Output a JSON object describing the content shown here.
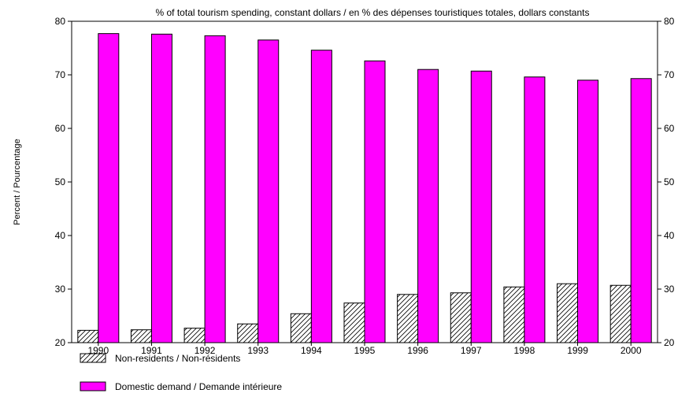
{
  "chart_data": {
    "type": "bar",
    "title": "% of total tourism spending, constant dollars / en % des dépenses touristiques totales, dollars constants",
    "xlabel": "",
    "ylabel": "Percent / Pourcentage",
    "ylim": [
      20,
      80
    ],
    "yticks": [
      "20",
      "30",
      "40",
      "50",
      "60",
      "70",
      "80"
    ],
    "categories": [
      "1990",
      "1991",
      "1992",
      "1993",
      "1994",
      "1995",
      "1996",
      "1997",
      "1998",
      "1999",
      "2000"
    ],
    "series": [
      {
        "name": "Non-residents / Non-résidents",
        "pattern": "hatch",
        "values": [
          22.3,
          22.4,
          22.7,
          23.5,
          25.4,
          27.4,
          29.0,
          29.3,
          30.4,
          31.0,
          30.7
        ]
      },
      {
        "name": "Domestic demand / Demande intérieure",
        "color": "#ff00ff",
        "values": [
          77.7,
          77.6,
          77.3,
          76.5,
          74.6,
          72.6,
          71.0,
          70.7,
          69.6,
          69.0,
          69.3
        ]
      }
    ],
    "grid": false,
    "legend_position": "bottom-left",
    "right_axis_mirrored": true
  }
}
